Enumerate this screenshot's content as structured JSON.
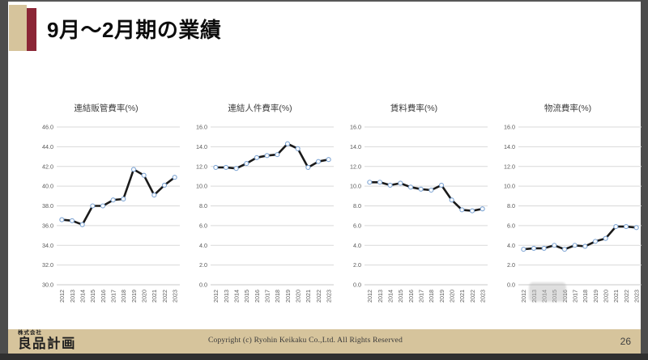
{
  "page": {
    "title": "9月～2月期の業績",
    "page_number": "26"
  },
  "footer": {
    "company_prefix": "株式会社",
    "company_name": "良品計画",
    "copyright": "Copyright (c) Ryohin Keikaku Co.,Ltd. All Rights Reserved"
  },
  "colors": {
    "accent_tan": "#d6c49c",
    "accent_maroon": "#8b2636",
    "frame_gray": "#4c4c4c",
    "line": "#1a1a1a",
    "marker_fill": "#ffffff",
    "marker_stroke": "#7da4d3",
    "grid": "#d9d9d9",
    "axis_text": "#595959",
    "chart_title_text": "#404040"
  },
  "chart_data": [
    {
      "type": "line",
      "title": "連結販管費率(%)",
      "categories": [
        "2012",
        "2013",
        "2014",
        "2015",
        "2016",
        "2017",
        "2018",
        "2019",
        "2020",
        "2021",
        "2022",
        "2023"
      ],
      "values": [
        36.6,
        36.5,
        36.1,
        38.0,
        38.0,
        38.6,
        38.7,
        41.7,
        41.1,
        39.1,
        40.1,
        40.9
      ],
      "ylim": [
        30.0,
        46.0
      ],
      "ytick_step": 2.0,
      "grid": true,
      "legend": false
    },
    {
      "type": "line",
      "title": "連結人件費率(%)",
      "categories": [
        "2012",
        "2013",
        "2014",
        "2015",
        "2016",
        "2017",
        "2018",
        "2019",
        "2020",
        "2021",
        "2022",
        "2023"
      ],
      "values": [
        11.9,
        11.9,
        11.8,
        12.3,
        12.9,
        13.1,
        13.2,
        14.3,
        13.8,
        11.9,
        12.5,
        12.7
      ],
      "ylim": [
        0.0,
        16.0
      ],
      "ytick_step": 2.0,
      "grid": true,
      "legend": false
    },
    {
      "type": "line",
      "title": "賃料費率(%)",
      "categories": [
        "2012",
        "2013",
        "2014",
        "2015",
        "2016",
        "2017",
        "2018",
        "2019",
        "2020",
        "2021",
        "2022",
        "2023"
      ],
      "values": [
        10.4,
        10.4,
        10.1,
        10.3,
        9.9,
        9.7,
        9.6,
        10.1,
        8.6,
        7.6,
        7.5,
        7.7
      ],
      "ylim": [
        0.0,
        16.0
      ],
      "ytick_step": 2.0,
      "grid": true,
      "legend": false
    },
    {
      "type": "line",
      "title": "物流費率(%)",
      "categories": [
        "2012",
        "2013",
        "2014",
        "2015",
        "2016",
        "2017",
        "2018",
        "2019",
        "2020",
        "2021",
        "2022",
        "2023"
      ],
      "values": [
        3.6,
        3.7,
        3.7,
        4.0,
        3.6,
        4.0,
        3.9,
        4.4,
        4.7,
        5.9,
        5.9,
        5.8
      ],
      "ylim": [
        0.0,
        16.0
      ],
      "ytick_step": 2.0,
      "grid": true,
      "legend": false
    }
  ]
}
